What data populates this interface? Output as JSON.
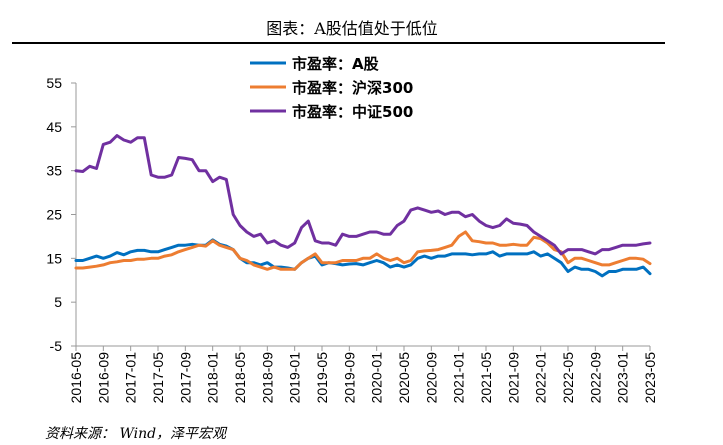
{
  "chart_data": {
    "type": "line",
    "title": "图表：A股估值处于低位",
    "source": "资料来源： Wind，泽平宏观",
    "xlabel": "",
    "ylabel": "",
    "ylim": [
      -5,
      55
    ],
    "yticks": [
      -5,
      5,
      15,
      25,
      35,
      45,
      55
    ],
    "xrange": [
      "2016-05",
      "2023-05"
    ],
    "xtick_labels": [
      "2016-05",
      "2016-09",
      "2017-01",
      "2017-05",
      "2017-09",
      "2018-01",
      "2018-05",
      "2018-09",
      "2019-01",
      "2019-05",
      "2019-09",
      "2020-01",
      "2020-05",
      "2020-09",
      "2021-01",
      "2021-05",
      "2021-09",
      "2022-01",
      "2022-05",
      "2022-09",
      "2023-01",
      "2023-05"
    ],
    "grid": false,
    "legend_position": "top-center",
    "colors": {
      "a_share": "#0070C0",
      "csi300": "#ED7D31",
      "csi500": "#7030A0"
    },
    "series": [
      {
        "key": "a_share",
        "name": "市盈率：A股",
        "values": [
          14.5,
          14.5,
          15,
          15.5,
          15,
          15.5,
          16.3,
          15.8,
          16.5,
          16.8,
          16.8,
          16.5,
          16.5,
          17,
          17.5,
          18,
          18,
          18.2,
          18,
          18,
          19.2,
          18.2,
          17.8,
          17,
          15,
          14,
          14,
          13.5,
          14,
          13,
          13,
          12.8,
          12.5,
          14,
          15,
          15.5,
          13.5,
          14,
          13.8,
          13.5,
          13.7,
          13.8,
          13.5,
          14,
          14.5,
          14,
          13,
          13.5,
          13,
          13.5,
          15,
          15.5,
          15,
          15.5,
          15.5,
          16,
          16,
          16,
          15.8,
          16,
          16,
          16.5,
          15.5,
          16,
          16,
          16,
          16,
          16.5,
          15.5,
          16,
          15,
          14,
          12,
          13,
          12.5,
          12.5,
          12,
          11,
          12,
          12,
          12.5,
          12.5,
          12.5,
          13,
          11.5
        ]
      },
      {
        "key": "csi300",
        "name": "市盈率：沪深300",
        "values": [
          12.8,
          12.8,
          13,
          13.2,
          13.5,
          14,
          14.2,
          14.5,
          14.5,
          14.8,
          14.8,
          15,
          15,
          15.5,
          15.8,
          16.5,
          17,
          17.5,
          18,
          17.8,
          19,
          18,
          17.5,
          17,
          15,
          14.5,
          13.5,
          13,
          12.5,
          13,
          12.5,
          12.5,
          12.5,
          14,
          15,
          16,
          14,
          14,
          14,
          14.5,
          14.5,
          14.5,
          15,
          15,
          16,
          15,
          14.5,
          15,
          14,
          14.5,
          16.5,
          16.7,
          16.8,
          17,
          17.5,
          18,
          20,
          21,
          19,
          18.8,
          18.5,
          18.5,
          18,
          18,
          18.2,
          18,
          18,
          19.8,
          19.5,
          18.5,
          17,
          16.5,
          14,
          15,
          15,
          14.5,
          14,
          13.5,
          13.5,
          14,
          14.5,
          15,
          15,
          14.8,
          13.8
        ]
      },
      {
        "key": "csi500",
        "name": "市盈率：中证500",
        "values": [
          35,
          34.8,
          36,
          35.5,
          41,
          41.5,
          43,
          42,
          41.5,
          42.5,
          42.5,
          34,
          33.5,
          33.5,
          34,
          38,
          37.8,
          37.5,
          35,
          35,
          32.5,
          33.5,
          33,
          25,
          22.5,
          21,
          20,
          20.5,
          18.5,
          19,
          18,
          17.5,
          18.5,
          22,
          23.5,
          19,
          18.5,
          18.5,
          18,
          20.5,
          20,
          20,
          20.5,
          21,
          21,
          20.5,
          20.5,
          22.5,
          23.5,
          26,
          26.5,
          26,
          25.5,
          25.8,
          25,
          25.5,
          25.5,
          24.5,
          25,
          23.5,
          22.5,
          22,
          22.5,
          24,
          23,
          22.8,
          22.5,
          21,
          20,
          19,
          18,
          16,
          17,
          17,
          17,
          16.5,
          16,
          17,
          17,
          17.5,
          18,
          18,
          18,
          18.3,
          18.5
        ]
      }
    ]
  }
}
